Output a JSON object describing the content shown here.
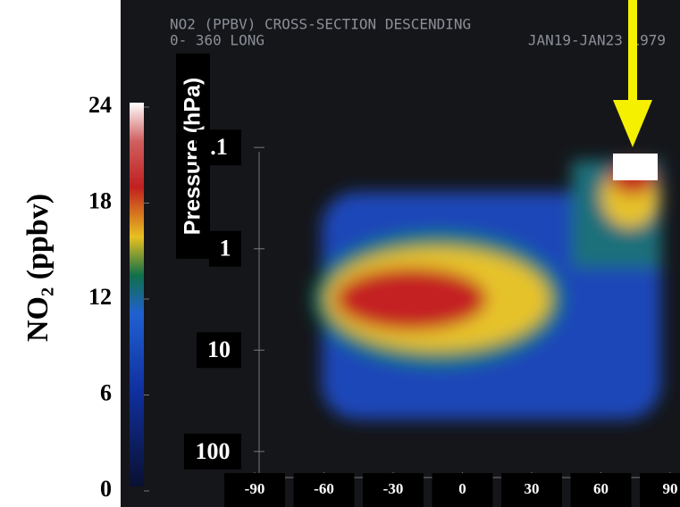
{
  "chart_data": {
    "type": "heatmap",
    "title": "NO2 (PPBV) CROSS-SECTION  DESCENDING",
    "subtitle": "0- 360 LONG",
    "date": "JAN19-JAN23 1979",
    "colorbar": {
      "label": "NO₂ (ppbv)",
      "lim": [
        0,
        24
      ],
      "ticks": [
        0,
        6,
        12,
        18,
        24
      ]
    },
    "ylabel": "Pressure (hPa)",
    "yscale": "log",
    "ylim": [
      200,
      0.04
    ],
    "yticks": [
      {
        "value": 0.1,
        "label": ".1"
      },
      1,
      10,
      100
    ],
    "xlim": [
      -90,
      90
    ],
    "xticks": [
      -90,
      -60,
      -30,
      0,
      30,
      60,
      90
    ]
  }
}
